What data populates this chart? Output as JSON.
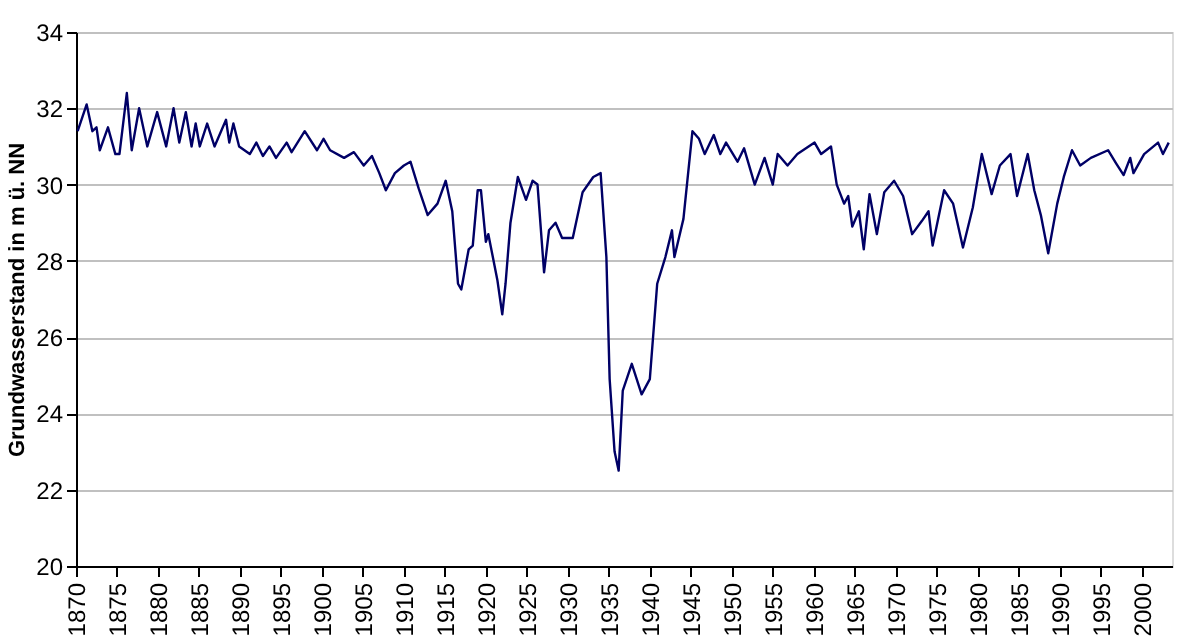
{
  "chart_data": {
    "type": "line",
    "ylabel": "Grundwasserstand in m ü. NN",
    "x": [
      1870.2,
      1871.3,
      1872,
      1872.5,
      1872.9,
      1873.9,
      1874.8,
      1875.3,
      1876.2,
      1876.8,
      1877.7,
      1878.7,
      1879.9,
      1881,
      1881.9,
      1882.6,
      1883.4,
      1884.1,
      1884.6,
      1885.1,
      1886,
      1886.9,
      1888.3,
      1888.7,
      1889.2,
      1889.9,
      1891.2,
      1892,
      1892.8,
      1893.6,
      1894.4,
      1895.7,
      1896.3,
      1897.9,
      1899.4,
      1900.2,
      1901,
      1902.7,
      1903.9,
      1905.1,
      1906.1,
      1907,
      1907.8,
      1908.9,
      1910,
      1910.8,
      1911.8,
      1912.9,
      1914.1,
      1915.1,
      1915.9,
      1916.6,
      1917,
      1917.9,
      1918.4,
      1919,
      1919.4,
      1920,
      1920.3,
      1921.4,
      1922,
      1922.4,
      1923,
      1923.9,
      1924.9,
      1925.7,
      1926.3,
      1927.1,
      1927.7,
      1928.5,
      1929.3,
      1930.6,
      1931.8,
      1933.1,
      1934,
      1934.7,
      1935.1,
      1935.7,
      1936.2,
      1936.7,
      1937.8,
      1939,
      1940,
      1940.9,
      1941.9,
      1942.7,
      1943,
      1944.1,
      1945.2,
      1946,
      1946.7,
      1947.8,
      1948.6,
      1949.3,
      1950.7,
      1951.5,
      1952.8,
      1954,
      1955,
      1955.6,
      1956.8,
      1958,
      1960.1,
      1960.9,
      1962.1,
      1962.8,
      1963.7,
      1964.2,
      1964.7,
      1965.5,
      1966.1,
      1966.8,
      1967.7,
      1968.6,
      1969.8,
      1970.9,
      1972,
      1973.2,
      1974,
      1974.5,
      1975.9,
      1977,
      1978.2,
      1979.4,
      1980.5,
      1981.7,
      1982.7,
      1984,
      1984.8,
      1986.1,
      1986.9,
      1987.7,
      1988.6,
      1989.7,
      1990.5,
      1991.5,
      1992.5,
      1993.8,
      1995.9,
      1996.9,
      1997.8,
      1998.6,
      1999,
      2000.3,
      2002,
      2002.6,
      2003.3
    ],
    "series": [
      {
        "color": "#000066",
        "values": [
          31.4,
          32.1,
          31.4,
          31.5,
          30.9,
          31.5,
          30.8,
          30.8,
          32.4,
          30.9,
          32.0,
          31.0,
          31.9,
          31.0,
          32.0,
          31.1,
          31.9,
          31.0,
          31.6,
          31.0,
          31.6,
          31.0,
          31.7,
          31.1,
          31.6,
          31.0,
          30.8,
          31.1,
          30.75,
          31.0,
          30.7,
          31.1,
          30.85,
          31.4,
          30.9,
          31.2,
          30.9,
          30.7,
          30.85,
          30.5,
          30.75,
          30.3,
          29.85,
          30.3,
          30.5,
          30.6,
          29.9,
          29.2,
          29.5,
          30.1,
          29.3,
          27.4,
          27.25,
          28.3,
          28.4,
          29.85,
          29.85,
          28.5,
          28.7,
          27.5,
          26.6,
          27.4,
          29.0,
          30.2,
          29.6,
          30.1,
          30.0,
          27.7,
          28.8,
          29.0,
          28.6,
          28.6,
          29.8,
          30.2,
          30.3,
          28.1,
          24.9,
          23.0,
          22.5,
          24.6,
          25.3,
          24.5,
          24.9,
          27.4,
          28.1,
          28.8,
          28.1,
          29.1,
          31.4,
          31.2,
          30.8,
          31.3,
          30.8,
          31.1,
          30.6,
          30.95,
          30.0,
          30.7,
          30.0,
          30.8,
          30.5,
          30.8,
          31.1,
          30.8,
          31.0,
          30.0,
          29.5,
          29.7,
          28.9,
          29.3,
          28.3,
          29.75,
          28.7,
          29.8,
          30.1,
          29.7,
          28.7,
          29.05,
          29.3,
          28.4,
          29.85,
          29.5,
          28.35,
          29.4,
          30.8,
          29.75,
          30.5,
          30.8,
          29.7,
          30.8,
          29.85,
          29.2,
          28.2,
          29.5,
          30.2,
          30.9,
          30.5,
          30.7,
          30.9,
          30.55,
          30.25,
          30.7,
          30.3,
          30.8,
          31.1,
          30.8,
          31.1
        ]
      }
    ],
    "xlim": [
      1870,
      2003.7
    ],
    "xticks": [
      1870,
      1875,
      1880,
      1885,
      1890,
      1895,
      1900,
      1905,
      1910,
      1915,
      1920,
      1925,
      1930,
      1935,
      1940,
      1945,
      1950,
      1955,
      1960,
      1965,
      1970,
      1975,
      1980,
      1985,
      1990,
      1995,
      2000
    ],
    "ylim": [
      20,
      34
    ],
    "yticks": [
      20,
      22,
      24,
      26,
      28,
      30,
      32,
      34
    ],
    "grid": "y",
    "marker": "none",
    "line_style": "solid"
  }
}
